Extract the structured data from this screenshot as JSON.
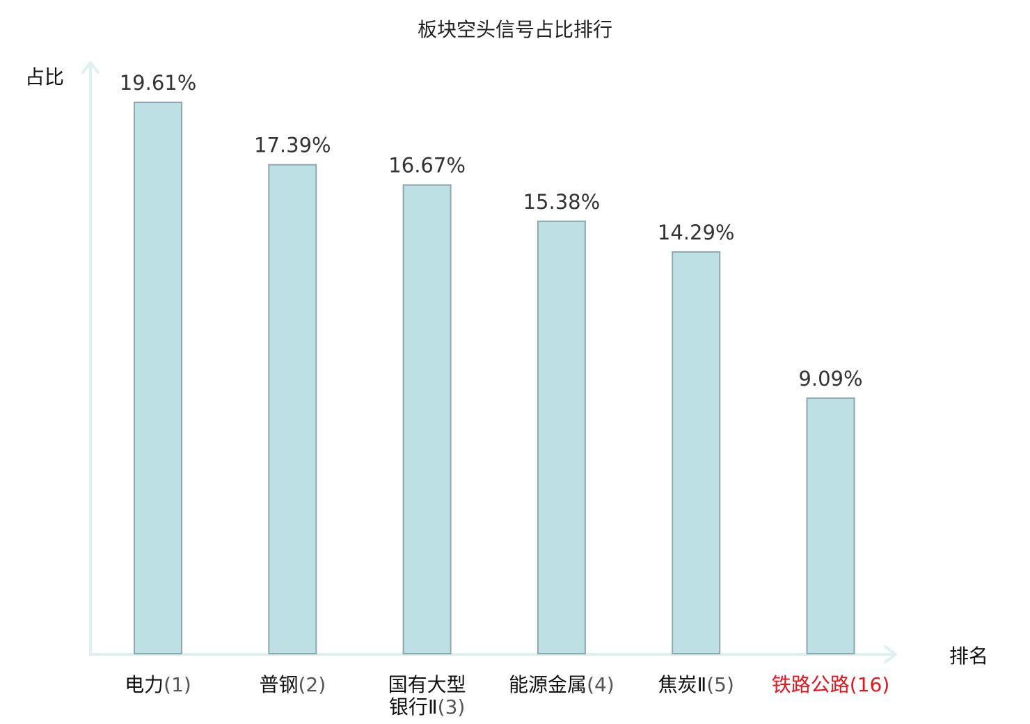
{
  "chart_data": {
    "type": "bar",
    "title": "板块空头信号占比排行",
    "ylabel": "占比",
    "xlabel": "排名",
    "ylim": [
      0,
      21
    ],
    "categories": [
      {
        "name_lines": [
          "电力"
        ],
        "rank": "(1)",
        "highlight": false
      },
      {
        "name_lines": [
          "普钢"
        ],
        "rank": "(2)",
        "highlight": false
      },
      {
        "name_lines": [
          "国有大型",
          "银行Ⅱ"
        ],
        "rank": "(3)",
        "highlight": false
      },
      {
        "name_lines": [
          "能源金属"
        ],
        "rank": "(4)",
        "highlight": false
      },
      {
        "name_lines": [
          "焦炭Ⅱ"
        ],
        "rank": "(5)",
        "highlight": false
      },
      {
        "name_lines": [
          "铁路公路"
        ],
        "rank": "(16)",
        "highlight": true
      }
    ],
    "values": [
      19.61,
      17.39,
      16.67,
      15.38,
      14.29,
      9.09
    ],
    "value_labels": [
      "19.61%",
      "17.39%",
      "16.67%",
      "15.38%",
      "14.29%",
      "9.09%"
    ],
    "grid": false
  },
  "colors": {
    "bar_fill": "#bce0e3",
    "bar_stroke": "#8ea8aa",
    "axis": "#dff1ef",
    "category_text": "#111111",
    "rank_text": "#555555",
    "highlight_text": "#e8141c"
  }
}
